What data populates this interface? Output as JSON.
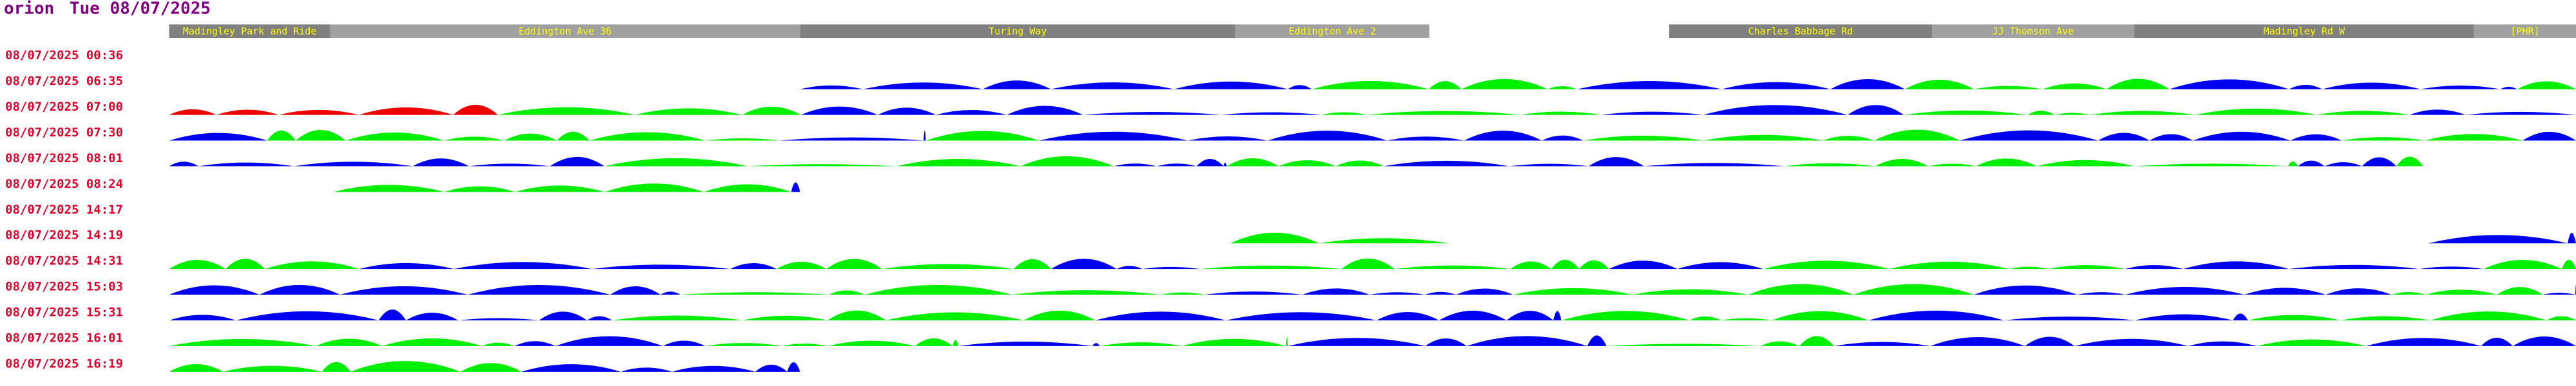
{
  "header": {
    "vehicle": "orion",
    "date": "Tue 08/07/2025"
  },
  "stops": [
    "Madingley Park and Ride",
    "Eddington Ave 36",
    "Turing Way",
    "Eddington Ave 2",
    "Charles Babbage Rd",
    "JJ Thomson Ave",
    "Madingley Rd W",
    "[PHR]"
  ],
  "rows": [
    "08/07/2025 00:36",
    "08/07/2025 06:35",
    "08/07/2025 07:00",
    "08/07/2025 07:30",
    "08/07/2025 08:01",
    "08/07/2025 08:24",
    "08/07/2025 14:17",
    "08/07/2025 14:19",
    "08/07/2025 14:31",
    "08/07/2025 15:03",
    "08/07/2025 15:31",
    "08/07/2025 16:01",
    "08/07/2025 16:19"
  ]
}
